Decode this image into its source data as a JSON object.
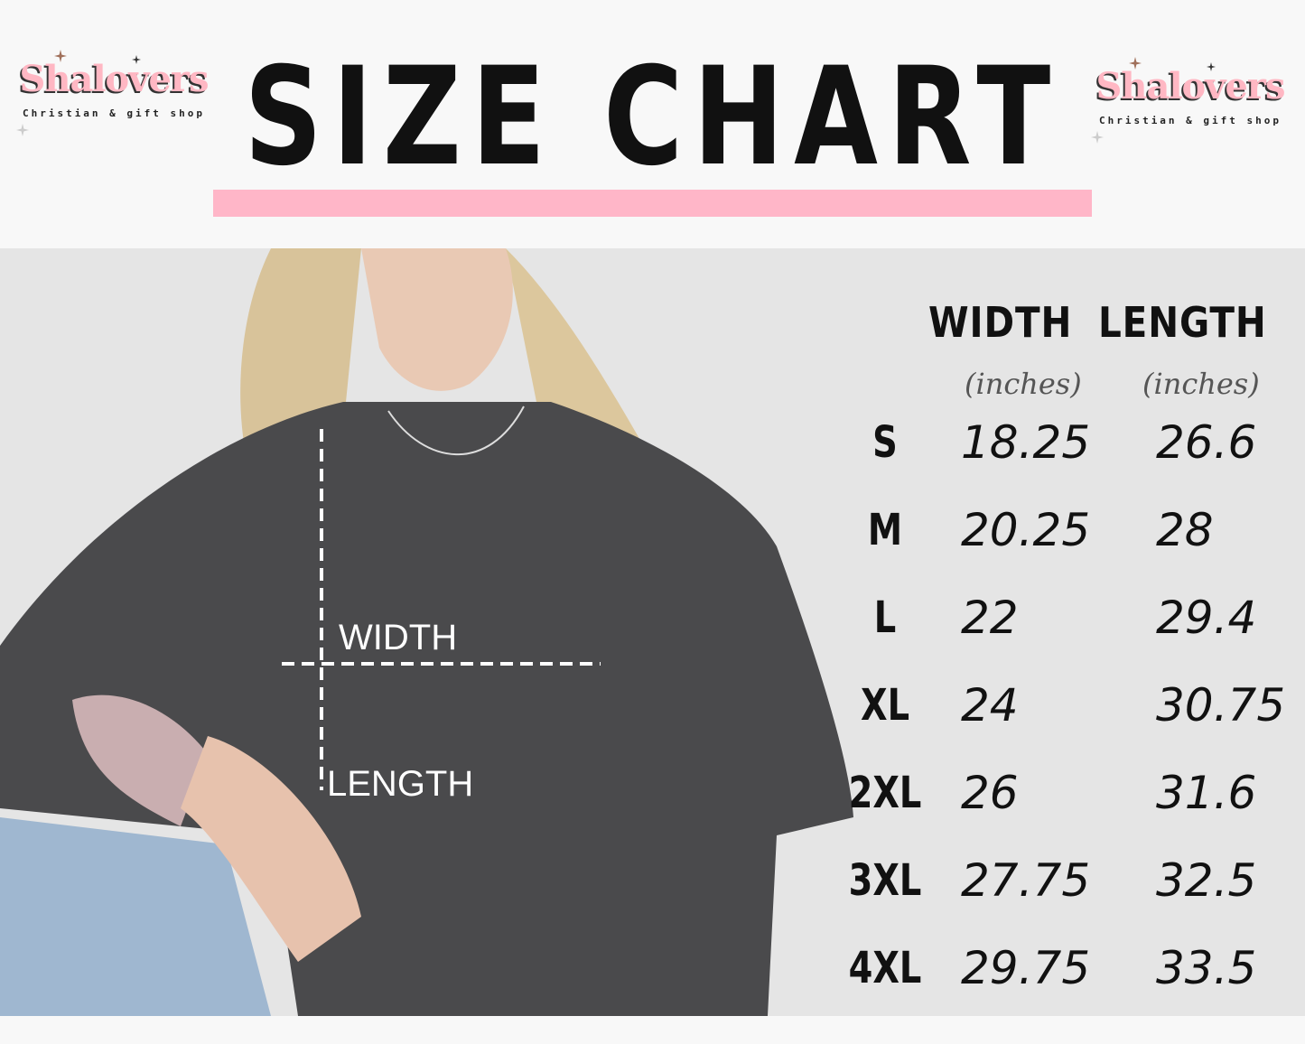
{
  "logo": {
    "name": "Shalovers",
    "tagline": "Christian & gift shop"
  },
  "title": "SIZE CHART",
  "colors": {
    "accent_bar": "#ffb6c8",
    "logo_pink": "#ffb7c3",
    "panel": "#e5e5e5",
    "shirt": "#4a4a4c"
  },
  "photo": {
    "width_label": "WIDTH",
    "length_label": "LENGTH"
  },
  "table": {
    "headers": [
      {
        "label": "WIDTH",
        "unit": "(inches)"
      },
      {
        "label": "LENGTH",
        "unit": "(inches)"
      }
    ],
    "rows": [
      {
        "size": "S",
        "width": "18.25",
        "length": "26.6"
      },
      {
        "size": "M",
        "width": "20.25",
        "length": "28"
      },
      {
        "size": "L",
        "width": "22",
        "length": "29.4"
      },
      {
        "size": "XL",
        "width": "24",
        "length": "30.75"
      },
      {
        "size": "2XL",
        "width": "26",
        "length": "31.6"
      },
      {
        "size": "3XL",
        "width": "27.75",
        "length": "32.5"
      },
      {
        "size": "4XL",
        "width": "29.75",
        "length": "33.5"
      }
    ]
  }
}
